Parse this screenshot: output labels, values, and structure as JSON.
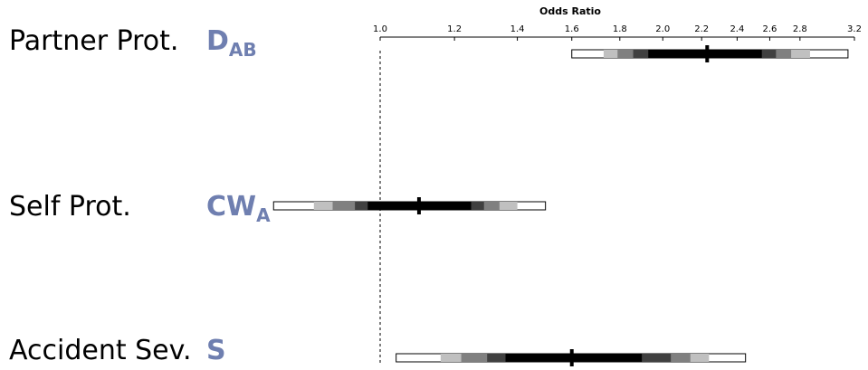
{
  "chart_data": {
    "type": "interval",
    "title": "Odds Ratio",
    "xlabel": "Odds Ratio",
    "xlim": [
      0.75,
      3.2
    ],
    "x_scale": "log",
    "ticks": [
      1.0,
      1.2,
      1.4,
      1.6,
      1.8,
      2.0,
      2.2,
      2.4,
      2.6,
      2.8,
      3.2
    ],
    "tick_labels": [
      "1.0",
      "1.2",
      "1.4",
      "1.6",
      "1.8",
      "2.0",
      "2.2",
      "2.4",
      "2.6",
      "2.8",
      "3.2"
    ],
    "reference_line": 1.0,
    "band_colors": [
      "#ffffff",
      "#c0c0c0",
      "#808080",
      "#404040",
      "#000000"
    ],
    "rows": [
      {
        "label": "Partner Prot.",
        "code": "D",
        "code_sub": "AB",
        "estimate": 2.23,
        "bands": [
          [
            1.6,
            3.15
          ],
          [
            1.73,
            2.87
          ],
          [
            1.79,
            2.74
          ],
          [
            1.86,
            2.64
          ],
          [
            1.93,
            2.55
          ]
        ]
      },
      {
        "label": "Self Prot.",
        "code": "CW",
        "code_sub": "A",
        "estimate": 1.1,
        "bands": [
          [
            0.77,
            1.5
          ],
          [
            0.85,
            1.4
          ],
          [
            0.89,
            1.34
          ],
          [
            0.94,
            1.29
          ],
          [
            0.97,
            1.25
          ]
        ]
      },
      {
        "label": "Accident Sev.",
        "code": "S",
        "code_sub": "",
        "estimate": 1.6,
        "bands": [
          [
            1.04,
            2.45
          ],
          [
            1.16,
            2.24
          ],
          [
            1.22,
            2.14
          ],
          [
            1.3,
            2.04
          ],
          [
            1.36,
            1.9
          ]
        ]
      }
    ]
  },
  "colors": {
    "code": "#6f7fb0",
    "axis": "#000000",
    "border": "#000000"
  }
}
